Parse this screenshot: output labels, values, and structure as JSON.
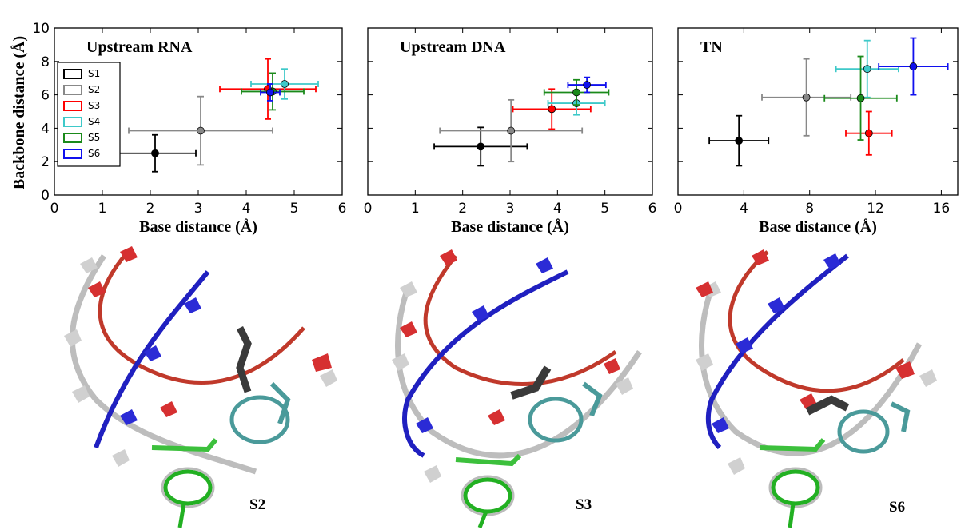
{
  "figure": {
    "legend_entries": [
      "S1",
      "S2",
      "S3",
      "S4",
      "S5",
      "S6"
    ],
    "structure_labels": [
      "S2",
      "S3",
      "S6"
    ]
  },
  "chart_data": [
    {
      "type": "scatter",
      "title": "Upstream RNA",
      "xlabel": "Base distance (Å)",
      "ylabel": "Backbone distance (Å)",
      "xlim": [
        0,
        6
      ],
      "ylim": [
        0,
        10
      ],
      "xticks": [
        "0",
        "1",
        "2",
        "3",
        "4",
        "5",
        "6"
      ],
      "yticks": [
        "0",
        "2",
        "4",
        "6",
        "8",
        "10"
      ],
      "legend": "left",
      "series": [
        {
          "name": "S1",
          "color": "#000000",
          "x": 2.1,
          "y": 2.5,
          "xerr": 0.85,
          "yerr": 1.1
        },
        {
          "name": "S2",
          "color": "#888888",
          "x": 3.05,
          "y": 3.85,
          "xerr": 1.5,
          "yerr": 2.05
        },
        {
          "name": "S3",
          "color": "#ff0000",
          "x": 4.45,
          "y": 6.35,
          "xerr": 1.0,
          "yerr": 1.8
        },
        {
          "name": "S4",
          "color": "#3ec9c9",
          "x": 4.8,
          "y": 6.65,
          "xerr": 0.7,
          "yerr": 0.9
        },
        {
          "name": "S5",
          "color": "#1a8a1a",
          "x": 4.55,
          "y": 6.2,
          "xerr": 0.65,
          "yerr": 1.1
        },
        {
          "name": "S6",
          "color": "#1010ee",
          "x": 4.5,
          "y": 6.15,
          "xerr": 0.2,
          "yerr": 0.5
        }
      ]
    },
    {
      "type": "scatter",
      "title": "Upstream DNA",
      "xlabel": "Base distance (Å)",
      "ylabel": "",
      "xlim": [
        0,
        6
      ],
      "ylim": [
        0,
        10
      ],
      "xticks": [
        "0",
        "1",
        "2",
        "3",
        "4",
        "5",
        "6"
      ],
      "yticks": [],
      "series": [
        {
          "name": "S1",
          "color": "#000000",
          "x": 2.38,
          "y": 2.9,
          "xerr": 0.98,
          "yerr": 1.15
        },
        {
          "name": "S2",
          "color": "#888888",
          "x": 3.02,
          "y": 3.85,
          "xerr": 1.5,
          "yerr": 1.85
        },
        {
          "name": "S3",
          "color": "#ff0000",
          "x": 3.88,
          "y": 5.15,
          "xerr": 0.82,
          "yerr": 1.2
        },
        {
          "name": "S4",
          "color": "#3ec9c9",
          "x": 4.4,
          "y": 5.5,
          "xerr": 0.6,
          "yerr": 0.7
        },
        {
          "name": "S5",
          "color": "#1a8a1a",
          "x": 4.4,
          "y": 6.15,
          "xerr": 0.68,
          "yerr": 0.75
        },
        {
          "name": "S6",
          "color": "#1010ee",
          "x": 4.62,
          "y": 6.6,
          "xerr": 0.4,
          "yerr": 0.45
        }
      ]
    },
    {
      "type": "scatter",
      "title": "TN",
      "xlabel": "Base distance (Å)",
      "ylabel": "",
      "xlim": [
        0,
        17
      ],
      "ylim": [
        0,
        10
      ],
      "xticks": [
        "0",
        "4",
        "8",
        "12",
        "16"
      ],
      "xtick_values": [
        0,
        4,
        8,
        12,
        16
      ],
      "yticks": [],
      "series": [
        {
          "name": "S1",
          "color": "#000000",
          "x": 3.7,
          "y": 3.25,
          "xerr": 1.8,
          "yerr": 1.5
        },
        {
          "name": "S2",
          "color": "#888888",
          "x": 7.8,
          "y": 5.85,
          "xerr": 2.7,
          "yerr": 2.3
        },
        {
          "name": "S3",
          "color": "#ff0000",
          "x": 11.6,
          "y": 3.7,
          "xerr": 1.4,
          "yerr": 1.3
        },
        {
          "name": "S4",
          "color": "#3ec9c9",
          "x": 11.5,
          "y": 7.55,
          "xerr": 1.9,
          "yerr": 1.7
        },
        {
          "name": "S5",
          "color": "#1a8a1a",
          "x": 11.1,
          "y": 5.8,
          "xerr": 2.2,
          "yerr": 2.5
        },
        {
          "name": "S6",
          "color": "#1010ee",
          "x": 14.3,
          "y": 7.7,
          "xerr": 2.1,
          "yerr": 1.7
        }
      ]
    }
  ]
}
